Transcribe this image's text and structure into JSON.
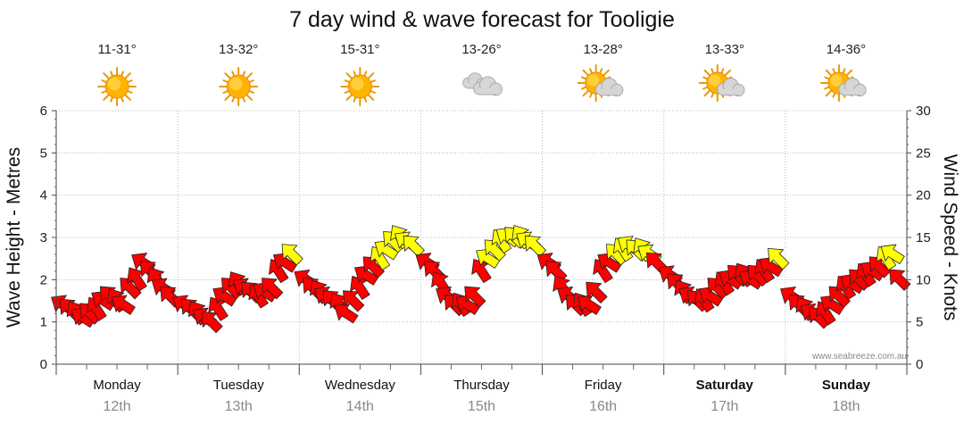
{
  "chart_data": {
    "type": "scatter",
    "title": "7 day wind & wave forecast for Tooligie",
    "ylabel_left": "Wave Height - Metres",
    "ylabel_right": "Wind Speed - Knots",
    "ylim_left": [
      0,
      6
    ],
    "ylim_right": [
      0,
      30
    ],
    "yticks_left": [
      0,
      1,
      2,
      3,
      4,
      5,
      6
    ],
    "yticks_right": [
      0,
      5,
      10,
      15,
      20,
      25,
      30
    ],
    "grid": true,
    "credit": "www.seabreeze.com.au",
    "days": [
      {
        "name": "Monday",
        "date": "12th",
        "temp": "11-31°",
        "icon": "sun-icon",
        "bold": false
      },
      {
        "name": "Tuesday",
        "date": "13th",
        "temp": "13-32°",
        "icon": "sun-icon",
        "bold": false
      },
      {
        "name": "Wednesday",
        "date": "14th",
        "temp": "15-31°",
        "icon": "sun-icon",
        "bold": false
      },
      {
        "name": "Thursday",
        "date": "15th",
        "temp": "13-26°",
        "icon": "cloud-icon",
        "bold": false
      },
      {
        "name": "Friday",
        "date": "16th",
        "temp": "13-28°",
        "icon": "partly-cloudy-icon",
        "bold": false
      },
      {
        "name": "Saturday",
        "date": "17th",
        "temp": "13-33°",
        "icon": "partly-cloudy-icon",
        "bold": true
      },
      {
        "name": "Sunday",
        "date": "18th",
        "temp": "14-36°",
        "icon": "partly-cloudy-icon",
        "bold": true
      }
    ],
    "wind_series": [
      [
        7,
        6.5,
        6,
        5.5,
        6,
        6.5,
        7.5,
        8,
        7.5,
        7,
        9,
        10,
        12,
        11,
        10,
        9,
        8
      ],
      [
        7,
        6.5,
        6,
        5.5,
        5,
        6.5,
        8,
        9,
        9.5,
        9,
        8.5,
        8,
        8.5,
        9,
        11,
        12,
        13
      ],
      [
        10,
        9,
        8.5,
        8,
        7.5,
        7,
        6,
        7.5,
        9,
        10.5,
        11.5,
        12.5,
        13.5,
        14.5,
        15,
        14.5,
        14
      ],
      [
        12,
        11,
        9.5,
        8,
        7,
        7,
        7,
        8,
        11,
        12.5,
        13.5,
        14.5,
        15,
        15,
        15,
        14.5,
        14
      ],
      [
        12,
        11,
        9,
        8,
        7,
        7,
        7,
        8.5,
        11,
        12,
        13,
        13.5,
        14,
        13.5,
        13.5,
        13,
        12
      ],
      [
        10.5,
        9.5,
        8.5,
        8,
        7.5,
        7.5,
        8,
        9,
        9.5,
        10,
        10.5,
        10.5,
        10,
        10.5,
        11,
        11.5,
        12.5
      ],
      [
        8,
        7,
        6.5,
        6,
        5.5,
        6,
        7,
        8,
        9,
        9.5,
        10,
        10.5,
        11,
        11.5,
        12.5,
        13,
        10
      ]
    ],
    "fast_threshold_knots": 12.5,
    "colors": {
      "slow": "#ff0000",
      "fast": "#ffff00",
      "grid": "#bbbbbb"
    }
  }
}
